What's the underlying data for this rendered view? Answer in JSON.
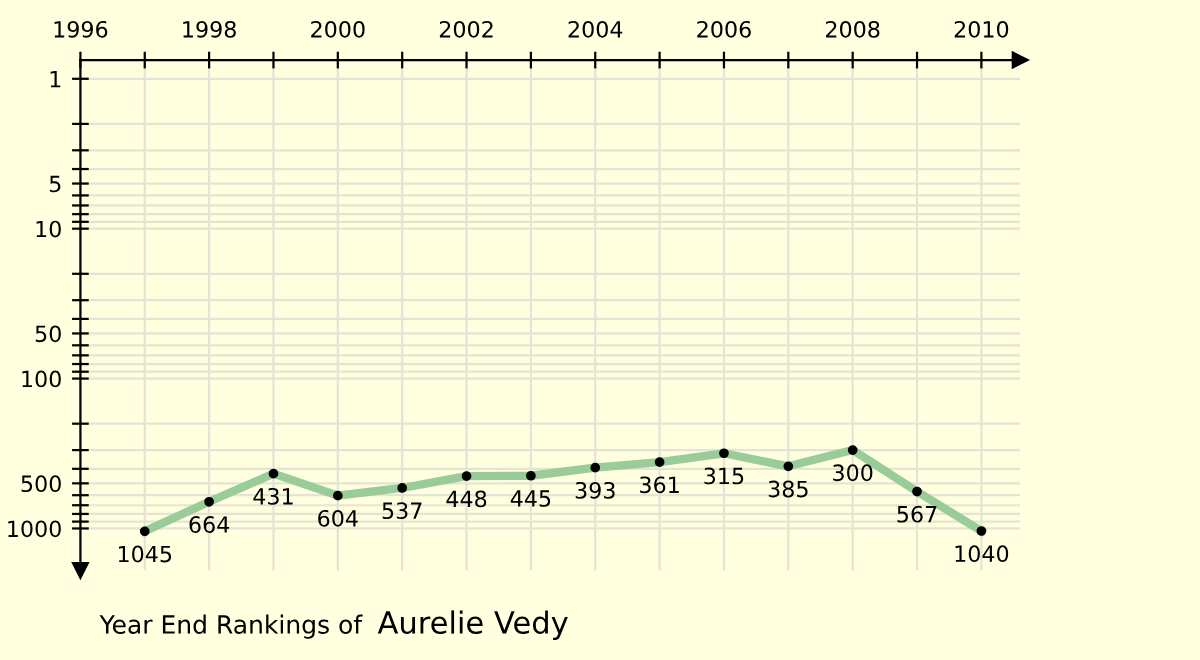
{
  "chart_data": {
    "type": "line",
    "title": "Year End Rankings of",
    "subtitle": "Aurelie Vedy",
    "x": [
      1997,
      1998,
      1999,
      2000,
      2001,
      2002,
      2003,
      2004,
      2005,
      2006,
      2007,
      2008,
      2009,
      2010
    ],
    "series": [
      {
        "color": "#99cc99",
        "values": [
          1045,
          664,
          431,
          604,
          537,
          448,
          445,
          393,
          361,
          315,
          385,
          300,
          567,
          1040
        ]
      }
    ],
    "data_labels": true,
    "marker": "circle",
    "line_style": "solid",
    "log": "y",
    "grid": true,
    "xlim": [
      1996,
      2010.6
    ],
    "xticks": [
      1996,
      {
        "value": 1997,
        "label": null
      },
      1998,
      {
        "value": 1999,
        "label": null
      },
      2000,
      {
        "value": 2001,
        "label": null
      },
      2002,
      {
        "value": 2003,
        "label": null
      },
      2004,
      {
        "value": 2005,
        "label": null
      },
      2006,
      {
        "value": 2007,
        "label": null
      },
      2008,
      {
        "value": 2009,
        "label": null
      },
      2010
    ],
    "ylim": [
      1900,
      0.75
    ],
    "yticks": [
      1,
      {
        "value": 2,
        "label": null
      },
      {
        "value": 3,
        "label": null
      },
      {
        "value": 4,
        "label": null
      },
      5,
      {
        "value": 6,
        "label": null
      },
      {
        "value": 7,
        "label": null
      },
      {
        "value": 8,
        "label": null
      },
      {
        "value": 9,
        "label": null
      },
      10,
      {
        "value": 20,
        "label": null
      },
      {
        "value": 30,
        "label": null
      },
      {
        "value": 40,
        "label": null
      },
      50,
      {
        "value": 60,
        "label": null
      },
      {
        "value": 70,
        "label": null
      },
      {
        "value": 80,
        "label": null
      },
      {
        "value": 90,
        "label": null
      },
      100,
      {
        "value": 200,
        "label": null
      },
      {
        "value": 300,
        "label": null
      },
      {
        "value": 400,
        "label": null
      },
      500,
      {
        "value": 600,
        "label": null
      },
      {
        "value": 700,
        "label": null
      },
      {
        "value": 800,
        "label": null
      },
      {
        "value": 900,
        "label": null
      },
      1000
    ]
  }
}
